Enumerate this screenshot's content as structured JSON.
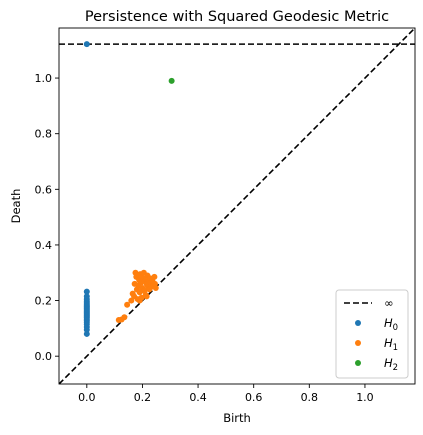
{
  "chart_data": {
    "type": "scatter",
    "title": "Persistence with Squared Geodesic Metric",
    "xlabel": "Birth",
    "ylabel": "Death",
    "xlim": [
      -0.1,
      1.18
    ],
    "ylim": [
      -0.1,
      1.18
    ],
    "xticks": [
      "0.0",
      "0.2",
      "0.4",
      "0.6",
      "0.8",
      "1.0"
    ],
    "xtick_values": [
      0,
      0.2,
      0.4,
      0.6,
      0.8,
      1.0
    ],
    "yticks": [
      "0.0",
      "0.2",
      "0.4",
      "0.6",
      "0.8",
      "1.0"
    ],
    "ytick_values": [
      0,
      0.2,
      0.4,
      0.6,
      0.8,
      1.0
    ],
    "grid": false,
    "infinity_line_y": 1.122,
    "diagonal": true,
    "legend": {
      "placement": "lower-right",
      "entries": [
        {
          "label": "∞",
          "style": "dashed-line",
          "color": "#000000"
        },
        {
          "label": "H",
          "sub": "0",
          "style": "dot",
          "color": "#1f77b4"
        },
        {
          "label": "H",
          "sub": "1",
          "style": "dot",
          "color": "#ff7f0e"
        },
        {
          "label": "H",
          "sub": "2",
          "style": "dot",
          "color": "#2ca02c"
        }
      ]
    },
    "series": [
      {
        "name": "H0",
        "color": "#1f77b4",
        "points": [
          [
            0,
            1.122
          ],
          [
            0,
            0.232
          ],
          [
            0,
            0.215
          ],
          [
            0,
            0.205
          ],
          [
            0,
            0.198
          ],
          [
            0,
            0.192
          ],
          [
            0,
            0.187
          ],
          [
            0,
            0.182
          ],
          [
            0,
            0.178
          ],
          [
            0,
            0.174
          ],
          [
            0,
            0.17
          ],
          [
            0,
            0.166
          ],
          [
            0,
            0.162
          ],
          [
            0,
            0.158
          ],
          [
            0,
            0.154
          ],
          [
            0,
            0.15
          ],
          [
            0,
            0.146
          ],
          [
            0,
            0.142
          ],
          [
            0,
            0.138
          ],
          [
            0,
            0.133
          ],
          [
            0,
            0.128
          ],
          [
            0,
            0.122
          ],
          [
            0,
            0.115
          ],
          [
            0,
            0.105
          ],
          [
            0,
            0.095
          ],
          [
            0,
            0.08
          ]
        ]
      },
      {
        "name": "H1",
        "color": "#ff7f0e",
        "points": [
          [
            0.115,
            0.13
          ],
          [
            0.125,
            0.132
          ],
          [
            0.135,
            0.14
          ],
          [
            0.145,
            0.185
          ],
          [
            0.16,
            0.2
          ],
          [
            0.165,
            0.225
          ],
          [
            0.17,
            0.215
          ],
          [
            0.172,
            0.26
          ],
          [
            0.175,
            0.3
          ],
          [
            0.178,
            0.285
          ],
          [
            0.18,
            0.24
          ],
          [
            0.183,
            0.205
          ],
          [
            0.185,
            0.255
          ],
          [
            0.188,
            0.275
          ],
          [
            0.19,
            0.23
          ],
          [
            0.192,
            0.295
          ],
          [
            0.195,
            0.265
          ],
          [
            0.197,
            0.21
          ],
          [
            0.2,
            0.245
          ],
          [
            0.202,
            0.28
          ],
          [
            0.205,
            0.3
          ],
          [
            0.207,
            0.235
          ],
          [
            0.21,
            0.27
          ],
          [
            0.212,
            0.22
          ],
          [
            0.215,
            0.26
          ],
          [
            0.218,
            0.29
          ],
          [
            0.22,
            0.25
          ],
          [
            0.222,
            0.275
          ],
          [
            0.225,
            0.24
          ],
          [
            0.228,
            0.28
          ],
          [
            0.23,
            0.265
          ],
          [
            0.233,
            0.25
          ],
          [
            0.236,
            0.27
          ],
          [
            0.24,
            0.255
          ],
          [
            0.243,
            0.285
          ],
          [
            0.245,
            0.26
          ],
          [
            0.248,
            0.245
          ],
          [
            0.215,
            0.215
          ],
          [
            0.19,
            0.2
          ]
        ]
      },
      {
        "name": "H2",
        "color": "#2ca02c",
        "points": [
          [
            0.305,
            0.99
          ]
        ]
      }
    ]
  }
}
